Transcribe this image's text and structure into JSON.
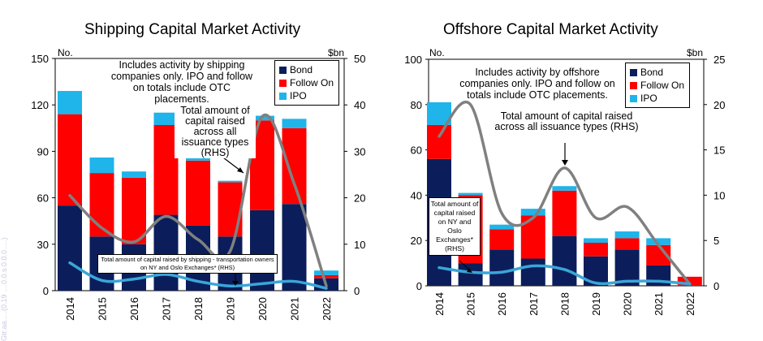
{
  "colors": {
    "bond": "#0b1e5b",
    "follow_on": "#ff0000",
    "ipo": "#1fb4ea",
    "total_line": "#808080",
    "otc_line": "#3aa6d8"
  },
  "watermark": "Gtr.aa.....(0.19 ....0.0.s.0.0.0.....)",
  "chart_data": [
    {
      "type": "bar",
      "title": "Shipping Capital Market Activity",
      "left_unit": "No.",
      "right_unit": "$bn",
      "categories": [
        "2014",
        "2015",
        "2016",
        "2017",
        "2018",
        "2019",
        "2020",
        "2021",
        "2022"
      ],
      "series": [
        {
          "name": "Bond",
          "values": [
            55,
            35,
            30,
            49,
            42,
            35,
            52,
            56,
            8
          ]
        },
        {
          "name": "Follow On",
          "values": [
            59,
            41,
            43,
            58,
            42,
            35,
            58,
            49,
            2
          ]
        },
        {
          "name": "IPO",
          "values": [
            15,
            10,
            4,
            8,
            6,
            1,
            3,
            6,
            3
          ]
        }
      ],
      "lines": [
        {
          "name": "Total amount of capital raised across all issuance types (RHS)",
          "axis": "right",
          "values": [
            20.5,
            13.5,
            10.5,
            16.0,
            11.0,
            8.5,
            37.5,
            23.0,
            1.0
          ]
        },
        {
          "name": "Total amount of capital raised by shipping - transportation owners on NY and Oslo Exchanges* (RHS)",
          "axis": "right",
          "values": [
            6.0,
            2.2,
            2.5,
            3.5,
            2.0,
            1.0,
            1.5,
            2.0,
            0.5
          ]
        }
      ],
      "ylim_left": [
        0,
        150
      ],
      "left_ticks": [
        "0",
        "30",
        "60",
        "90",
        "120",
        "150"
      ],
      "ylim_right": [
        0,
        50
      ],
      "right_ticks": [
        "0",
        "10",
        "20",
        "30",
        "40",
        "50"
      ],
      "note": "Includes activity by shipping companies only. IPO and follow on totals include OTC placements.",
      "callout": "Total amount of capital raised across all issuance types (RHS)",
      "boxed_label": "Total amount of capital raised by shipping - transportation owners on NY and Oslo Exchanges* (RHS)",
      "legend": [
        "Bond",
        "Follow On",
        "IPO"
      ],
      "legend_position": "top-right"
    },
    {
      "type": "bar",
      "title": "Offshore Capital Market Activity",
      "left_unit": "No.",
      "right_unit": "$bn",
      "categories": [
        "2014",
        "2015",
        "2016",
        "2017",
        "2018",
        "2019",
        "2020",
        "2021",
        "2022"
      ],
      "series": [
        {
          "name": "Bond",
          "values": [
            56,
            10,
            16,
            12,
            22,
            13,
            16,
            9,
            0
          ]
        },
        {
          "name": "Follow On",
          "values": [
            15,
            30,
            9,
            19,
            20,
            6,
            5,
            9,
            4
          ]
        },
        {
          "name": "IPO",
          "values": [
            10,
            1,
            2,
            3,
            2,
            2,
            3,
            3,
            0
          ]
        }
      ],
      "lines": [
        {
          "name": "Total amount of capital raised across all issuance types (RHS)",
          "axis": "right",
          "values": [
            16.5,
            20.0,
            8.0,
            7.5,
            13.0,
            7.5,
            8.7,
            4.5,
            0.2
          ]
        },
        {
          "name": "Total amount of capital raised on NY and Oslo Exchanges* (RHS)",
          "axis": "right",
          "values": [
            2.0,
            1.5,
            1.5,
            2.2,
            1.8,
            0.3,
            0.5,
            0.5,
            0.2
          ]
        }
      ],
      "ylim_left": [
        0,
        100
      ],
      "left_ticks": [
        "0",
        "20",
        "40",
        "60",
        "80",
        "100"
      ],
      "ylim_right": [
        0,
        25
      ],
      "right_ticks": [
        "0",
        "5",
        "10",
        "15",
        "20",
        "25"
      ],
      "note": "Includes activity by offshore companies only. IPO and follow on totals include OTC placements.",
      "callout": "Total amount of capital raised across all issuance types (RHS)",
      "boxed_label": "Total amount of capital raised on NY and Oslo Exchanges* (RHS)",
      "legend": [
        "Bond",
        "Follow On",
        "IPO"
      ],
      "legend_position": "top-right"
    }
  ]
}
